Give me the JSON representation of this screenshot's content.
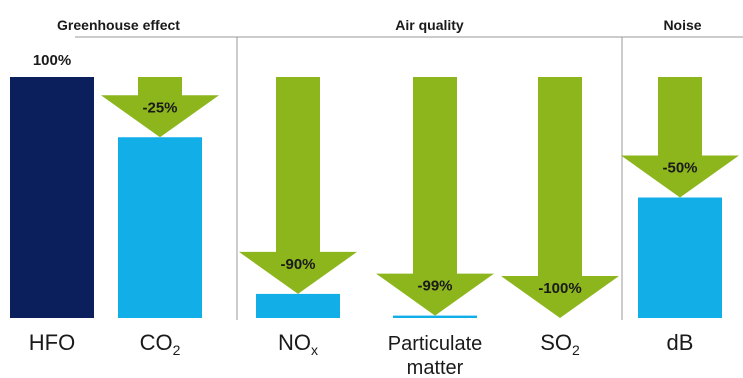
{
  "chart_data": {
    "type": "bar",
    "groups": [
      {
        "title": "Greenhouse effect",
        "categories": [
          0,
          1
        ]
      },
      {
        "title": "Air quality",
        "categories": [
          2,
          3,
          4
        ]
      },
      {
        "title": "Noise",
        "categories": [
          5
        ]
      }
    ],
    "categories": [
      {
        "main": "HFO",
        "sub": "",
        "lines": [
          "HFO"
        ]
      },
      {
        "main": "CO",
        "sub": "2",
        "lines": [
          "CO2"
        ]
      },
      {
        "main": "NO",
        "sub": "x",
        "lines": [
          "NOx"
        ]
      },
      {
        "main": "Particulate",
        "sub": "",
        "lines": [
          "Particulate",
          "matter"
        ]
      },
      {
        "main": "SO",
        "sub": "2",
        "lines": [
          "SO2"
        ]
      },
      {
        "main": "dB",
        "sub": "",
        "lines": [
          "dB"
        ]
      }
    ],
    "values": [
      100,
      75,
      10,
      1,
      0,
      50
    ],
    "reductions": [
      null,
      -25,
      -90,
      -99,
      -100,
      -50
    ],
    "labels": [
      "100%",
      "-25%",
      "-90%",
      "-99%",
      "-100%",
      "-50%"
    ],
    "ylim": [
      0,
      100
    ],
    "colors": {
      "baseline": "#0a1f5c",
      "bar": "#12aee8",
      "arrow": "#8db61d",
      "divider": "#9a9a9a"
    }
  }
}
